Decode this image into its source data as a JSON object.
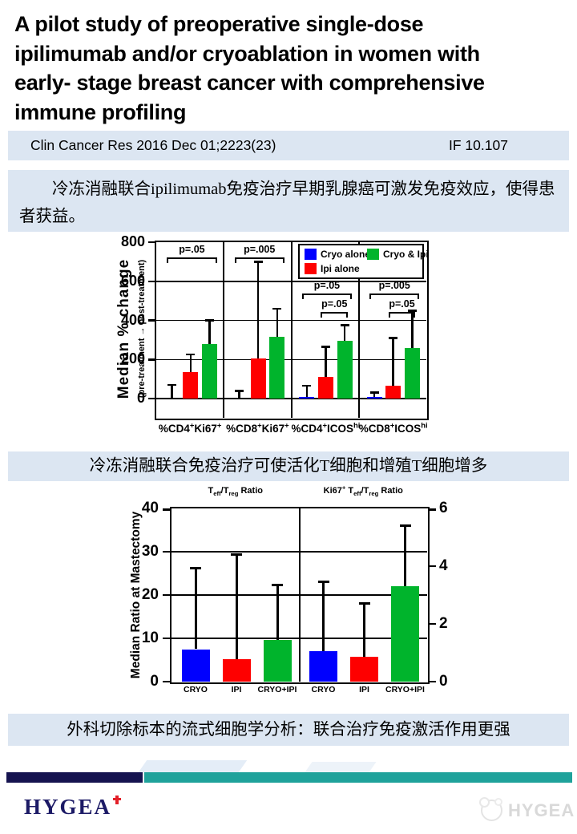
{
  "title_lines": [
    "A pilot study of preoperative single-dose",
    "ipilimumab and/or cryoablation in women with",
    "early- stage breast cancer with comprehensive",
    "immune profiling"
  ],
  "citation": {
    "text": "Clin Cancer Res 2016 Dec 01;2223(23)",
    "impact_factor": "IF 10.107"
  },
  "highlight_boxes": {
    "box1": "冷冻消融联合ipilimumab免疫治疗早期乳腺癌可激发免疫效应，使得患者获益。",
    "box2": "冷冻消融联合免疫治疗可使活化T细胞和增殖T细胞增多",
    "box3": "外科切除标本的流式细胞学分析：联合治疗免疫激活作用更强"
  },
  "footer": {
    "logo_text": "HYGEA",
    "watermark_text": "HYGEA"
  },
  "colors": {
    "cryo_blue": "#0000FE",
    "ipi_red": "#FE0000",
    "combo_green": "#00B42C",
    "box_bg": "#DCE6F2",
    "navy_bar": "#15134F",
    "teal_bar": "#1FA29B",
    "logo_navy": "#1C1A66",
    "logo_cross_red": "#E32029",
    "watermark_gray": "#D9D9D9"
  },
  "chart_data": [
    {
      "id": "median-percent-change",
      "type": "bar",
      "title": "",
      "ylabel": "Median % change",
      "ylabel_sub": "(pre-treatment → post-treatment)",
      "ylim": [
        0,
        800
      ],
      "yticks": [
        0,
        200,
        400,
        600,
        800
      ],
      "gridlines": [
        200,
        400,
        600
      ],
      "grid": true,
      "legend_position": "top-right",
      "legend": [
        {
          "label": "Cryo alone",
          "color": "#0000FE"
        },
        {
          "label": "Ipi alone",
          "color": "#FE0000"
        },
        {
          "label": "Cryo & Ipi",
          "color": "#00B42C"
        }
      ],
      "series_order": [
        "Cryo alone",
        "Ipi alone",
        "Cryo & Ipi"
      ],
      "panels": [
        {
          "label": "%CD4^{+}Ki67^{+}",
          "values": [
            0,
            135,
            280
          ],
          "errors_high": [
            70,
            225,
            400
          ],
          "brackets": [
            {
              "label": "p=.05",
              "from": 0,
              "to": 2,
              "level": 0
            }
          ]
        },
        {
          "label": "%CD8^{+}Ki67^{+}",
          "values": [
            0,
            205,
            315
          ],
          "errors_high": [
            40,
            700,
            460
          ],
          "brackets": [
            {
              "label": "p=.005",
              "from": 0,
              "to": 2,
              "level": 0
            }
          ]
        },
        {
          "label": "%CD4^{+}ICOS^{hi}",
          "values": [
            10,
            110,
            295
          ],
          "errors_high": [
            65,
            265,
            375
          ],
          "brackets": [
            {
              "label": "p=.05",
              "from": 0,
              "to": 2,
              "level": 1
            },
            {
              "label": "p=.05",
              "from": 1,
              "to": 2,
              "level": 2
            }
          ]
        },
        {
          "label": "%CD8^{+}ICOS^{hi}",
          "values": [
            8,
            65,
            260
          ],
          "errors_high": [
            30,
            310,
            450
          ],
          "brackets": [
            {
              "label": "p=.005",
              "from": 0,
              "to": 2,
              "level": 1
            },
            {
              "label": "p=.05",
              "from": 1,
              "to": 2,
              "level": 2
            }
          ]
        }
      ]
    },
    {
      "id": "teff-treg-ratio-at-mastectomy",
      "type": "bar",
      "ylabel": "Median Ratio at Mastectomy",
      "left_axis": {
        "lim": [
          0,
          40
        ],
        "ticks": [
          0,
          10,
          20,
          30,
          40
        ]
      },
      "right_axis": {
        "lim": [
          0,
          6
        ],
        "ticks": [
          0,
          2,
          4,
          6
        ]
      },
      "gridlines_left_scale": [
        10,
        20,
        30
      ],
      "grid": true,
      "categories": [
        "CRYO",
        "IPI",
        "CRYO+IPI"
      ],
      "bar_colors": [
        "#0000FE",
        "#FE0000",
        "#00B42C"
      ],
      "panels": [
        {
          "title": "T_{eff}/T_{reg} Ratio",
          "axis": "left",
          "values": [
            7.5,
            5.2,
            9.6
          ],
          "errors_high": [
            26.2,
            29.3,
            22.3
          ]
        },
        {
          "title": "Ki67^{+} T_{eff}/T_{reg} Ratio",
          "axis": "right",
          "values": [
            1.05,
            0.85,
            3.3
          ],
          "errors_high": [
            3.45,
            2.7,
            5.4
          ]
        }
      ]
    }
  ]
}
